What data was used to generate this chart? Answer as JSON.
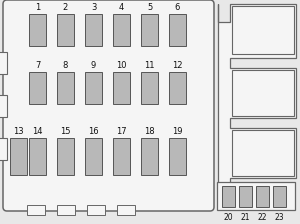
{
  "bg_color": "#e8e8e8",
  "main_box_color": "#f5f5f5",
  "main_box_edge": "#666666",
  "fuse_color": "#b8b8b8",
  "fuse_edge": "#555555",
  "side_color": "#f5f5f5",
  "side_edge": "#666666",
  "label_fontsize": 6.0,
  "label_color": "#111111",
  "row1_fuses": [
    "1",
    "2",
    "3",
    "4",
    "5",
    "6"
  ],
  "row2_fuses": [
    "7",
    "8",
    "9",
    "10",
    "11",
    "12"
  ],
  "row3_fuses": [
    "13",
    "14",
    "15",
    "16",
    "17",
    "18",
    "19"
  ],
  "bottom_fuses": [
    "20",
    "21",
    "22",
    "23"
  ]
}
